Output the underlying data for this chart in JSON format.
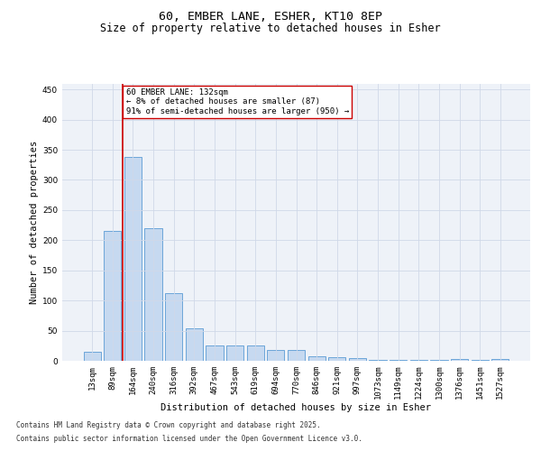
{
  "title_line1": "60, EMBER LANE, ESHER, KT10 8EP",
  "title_line2": "Size of property relative to detached houses in Esher",
  "xlabel": "Distribution of detached houses by size in Esher",
  "ylabel": "Number of detached properties",
  "categories": [
    "13sqm",
    "89sqm",
    "164sqm",
    "240sqm",
    "316sqm",
    "392sqm",
    "467sqm",
    "543sqm",
    "619sqm",
    "694sqm",
    "770sqm",
    "846sqm",
    "921sqm",
    "997sqm",
    "1073sqm",
    "1149sqm",
    "1224sqm",
    "1300sqm",
    "1376sqm",
    "1451sqm",
    "1527sqm"
  ],
  "values": [
    15,
    215,
    338,
    220,
    112,
    54,
    26,
    25,
    25,
    18,
    18,
    8,
    6,
    5,
    1,
    1,
    1,
    1,
    3,
    1,
    3
  ],
  "bar_color": "#c6d9f0",
  "bar_edge_color": "#5b9bd5",
  "vline_x": 1.5,
  "vline_color": "#cc0000",
  "annotation_text": "60 EMBER LANE: 132sqm\n← 8% of detached houses are smaller (87)\n91% of semi-detached houses are larger (950) →",
  "annotation_box_color": "#ffffff",
  "annotation_box_edge": "#cc0000",
  "ylim": [
    0,
    460
  ],
  "yticks": [
    0,
    50,
    100,
    150,
    200,
    250,
    300,
    350,
    400,
    450
  ],
  "grid_color": "#d0d8e8",
  "background_color": "#eef2f8",
  "footer_line1": "Contains HM Land Registry data © Crown copyright and database right 2025.",
  "footer_line2": "Contains public sector information licensed under the Open Government Licence v3.0.",
  "title_fontsize": 9.5,
  "subtitle_fontsize": 8.5,
  "axis_fontsize": 7.5,
  "tick_fontsize": 6.5,
  "annotation_fontsize": 6.5,
  "footer_fontsize": 5.5
}
